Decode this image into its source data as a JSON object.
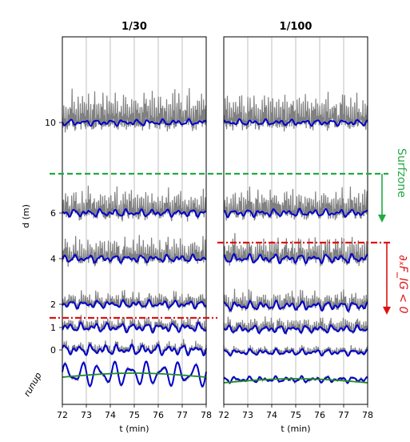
{
  "chart_data": [
    {
      "type": "line",
      "title": "1/30",
      "xlabel": "t (min)",
      "ylabel": "d (m)",
      "xlim": [
        72,
        78
      ],
      "x_ticks": [
        "72",
        "73",
        "74",
        "75",
        "76",
        "77",
        "78"
      ],
      "y_ticks": [
        {
          "value": 10,
          "label": "10"
        },
        {
          "value": 6,
          "label": "6"
        },
        {
          "value": 4,
          "label": "4"
        },
        {
          "value": 2,
          "label": "2"
        },
        {
          "value": 1,
          "label": "1"
        },
        {
          "value": 0,
          "label": "0"
        },
        {
          "value": -1,
          "label": "runup"
        }
      ],
      "grid_x": true,
      "series": [
        {
          "name": "",
          "color": "#808080"
        },
        {
          "name": "",
          "color": "#0000cc"
        },
        {
          "name": "",
          "color": "#228b22"
        }
      ]
    },
    {
      "type": "line",
      "title": "1/100",
      "xlabel": "t (min)",
      "xlim": [
        72,
        78
      ],
      "x_ticks": [
        "72",
        "73",
        "74",
        "75",
        "76",
        "77",
        "78"
      ],
      "grid_x": true,
      "series": [
        {
          "name": "",
          "color": "#808080"
        },
        {
          "name": "",
          "color": "#0000cc"
        },
        {
          "name": "",
          "color": "#228b22"
        }
      ]
    }
  ],
  "annotations": {
    "surfzone": {
      "label": "Surfzone",
      "color": "#22aa44"
    },
    "flux": {
      "label": "∂ₓF_IG < 0",
      "color": "#dd1111"
    }
  },
  "colors": {
    "raw": "#808080",
    "filtered": "#0000cc",
    "runup": "#228b22"
  }
}
